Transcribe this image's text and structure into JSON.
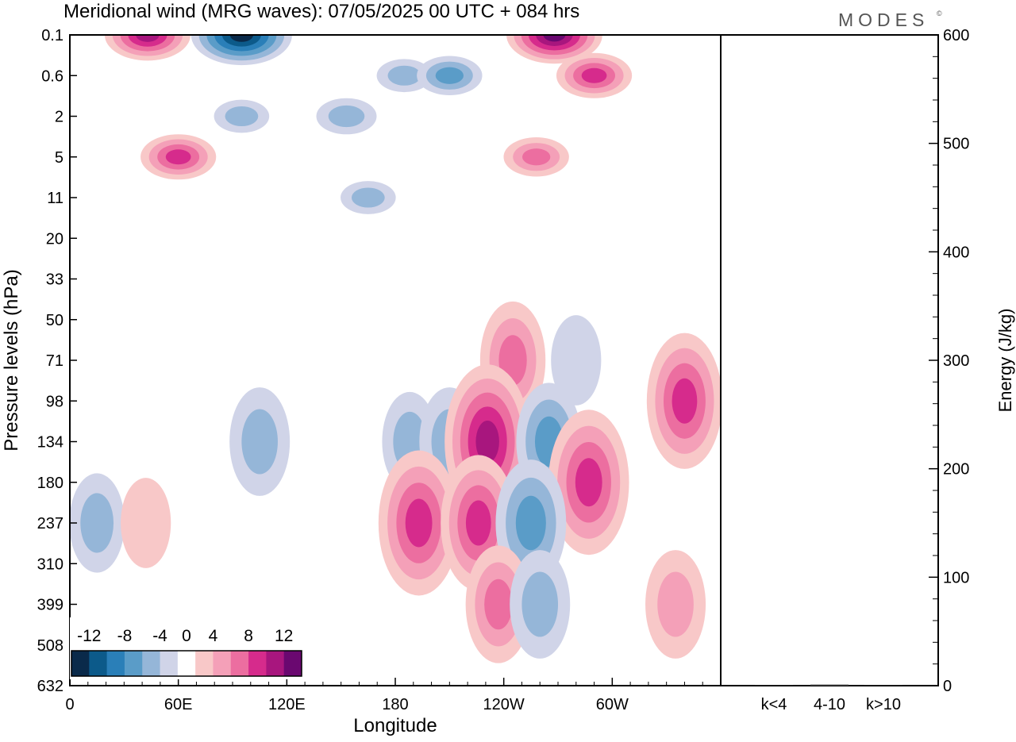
{
  "header": {
    "title": "Meridional wind (MRG waves):  07/05/2025  00 UTC  + 084 hrs",
    "brand": "MODES",
    "brand_mark": "©"
  },
  "chart_data": [
    {
      "type": "heatmap",
      "title": "Meridional wind (MRG waves):  07/05/2025  00 UTC  + 084 hrs",
      "xlabel": "Longitude",
      "ylabel": "Pressure levels (hPa)",
      "x_ticks": [
        "0",
        "60E",
        "120E",
        "180",
        "120W",
        "60W"
      ],
      "x_tick_values": [
        0,
        60,
        120,
        180,
        240,
        300
      ],
      "xlim": [
        0,
        360
      ],
      "y_ticks": [
        "0.1",
        "0.6",
        "2",
        "5",
        "11",
        "20",
        "33",
        "50",
        "71",
        "98",
        "134",
        "180",
        "237",
        "310",
        "399",
        "508",
        "632"
      ],
      "y_axis_inverted": true,
      "colorbar": {
        "labels": [
          "-12",
          "-8",
          "-4",
          "0",
          "4",
          "8",
          "12"
        ],
        "levels": [
          -14,
          -12,
          -10,
          -8,
          -6,
          -4,
          -2,
          2,
          4,
          6,
          8,
          10,
          12,
          14
        ],
        "colors": [
          "#0a2a4a",
          "#0c5a8a",
          "#2a7fb8",
          "#5a9cc8",
          "#95b6d8",
          "#d0d4e8",
          "#ffffff",
          "#f8c8c8",
          "#f4a0b8",
          "#ec6ea0",
          "#d62b8c",
          "#a8167e",
          "#6a0870"
        ],
        "location": "bottom-left"
      },
      "cells": [
        {
          "lon": 43,
          "p": "0.1",
          "v": 10
        },
        {
          "lon": 95,
          "p": "0.1",
          "v": -13
        },
        {
          "lon": 185,
          "p": "0.6",
          "v": -4
        },
        {
          "lon": 210,
          "p": "0.6",
          "v": -6
        },
        {
          "lon": 268,
          "p": "0.1",
          "v": 12
        },
        {
          "lon": 290,
          "p": "0.6",
          "v": 8
        },
        {
          "lon": 95,
          "p": "2",
          "v": -4
        },
        {
          "lon": 60,
          "p": "5",
          "v": 8
        },
        {
          "lon": 153,
          "p": "2",
          "v": -5
        },
        {
          "lon": 258,
          "p": "5",
          "v": 6
        },
        {
          "lon": 165,
          "p": "11",
          "v": -4
        },
        {
          "lon": 245,
          "p": "71",
          "v": 6
        },
        {
          "lon": 280,
          "p": "71",
          "v": -3
        },
        {
          "lon": 105,
          "p": "134",
          "v": -5
        },
        {
          "lon": 188,
          "p": "134",
          "v": -4
        },
        {
          "lon": 210,
          "p": "134",
          "v": -5
        },
        {
          "lon": 231,
          "p": "134",
          "v": 10
        },
        {
          "lon": 265,
          "p": "134",
          "v": -6
        },
        {
          "lon": 287,
          "p": "180",
          "v": 9
        },
        {
          "lon": 340,
          "p": "98",
          "v": 8
        },
        {
          "lon": 193,
          "p": "237",
          "v": 9
        },
        {
          "lon": 226,
          "p": "237",
          "v": 8
        },
        {
          "lon": 255,
          "p": "237",
          "v": -7
        },
        {
          "lon": 15,
          "p": "237",
          "v": -4
        },
        {
          "lon": 42,
          "p": "237",
          "v": 3
        },
        {
          "lon": 237,
          "p": "399",
          "v": 6
        },
        {
          "lon": 260,
          "p": "399",
          "v": -5
        },
        {
          "lon": 335,
          "p": "399",
          "v": 5
        }
      ]
    },
    {
      "type": "bar",
      "categories": [
        "k<4",
        "4-10",
        "k>10"
      ],
      "values": [
        0,
        1,
        0
      ],
      "ylabel": "Energy (J/kg)",
      "ylim": [
        0,
        600
      ],
      "y_ticks": [
        "0",
        "100",
        "200",
        "300",
        "400",
        "500",
        "600"
      ],
      "y_tick_values": [
        0,
        100,
        200,
        300,
        400,
        500,
        600
      ]
    }
  ]
}
